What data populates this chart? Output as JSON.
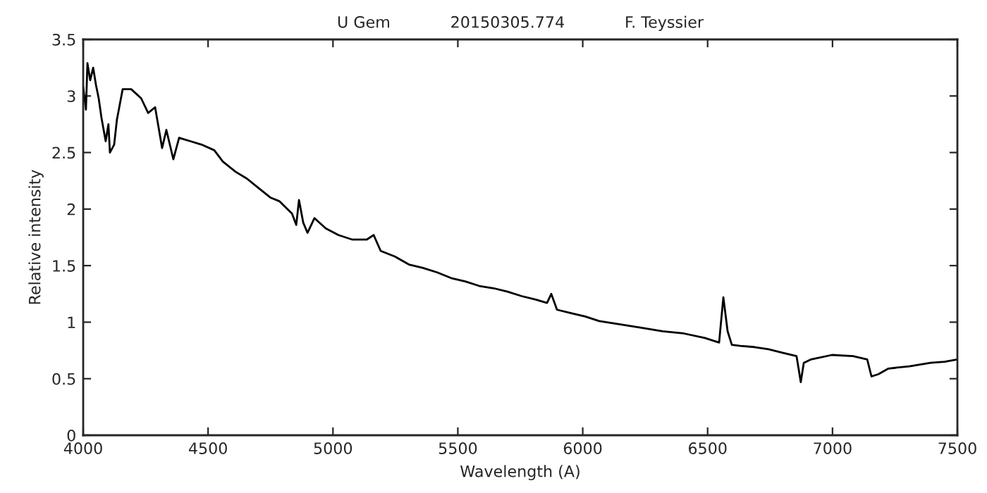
{
  "chart_data": {
    "type": "line",
    "title": "U Gem            20150305.774            F. Teyssier",
    "xlabel": "Wavelength (A)",
    "ylabel": "Relative intensity",
    "xlim": [
      4000,
      7500
    ],
    "xticks": [
      4000,
      4500,
      5000,
      5500,
      6000,
      6500,
      7000,
      7500
    ],
    "ylim": [
      0,
      3.5
    ],
    "yticks": [
      0,
      0.5,
      1,
      1.5,
      2,
      2.5,
      3,
      3.5
    ],
    "grid": false,
    "legend": false,
    "series": [
      {
        "color": "#000000",
        "x": [
          4000,
          4011,
          4017,
          4028,
          4040,
          4051,
          4062,
          4073,
          4090,
          4101,
          4107,
          4124,
          4135,
          4158,
          4192,
          4232,
          4260,
          4288,
          4316,
          4333,
          4361,
          4384,
          4429,
          4474,
          4525,
          4559,
          4610,
          4655,
          4700,
          4751,
          4785,
          4836,
          4853,
          4864,
          4881,
          4898,
          4926,
          4971,
          5022,
          5078,
          5135,
          5163,
          5191,
          5248,
          5304,
          5360,
          5417,
          5473,
          5530,
          5586,
          5643,
          5699,
          5756,
          5812,
          5857,
          5874,
          5897,
          5953,
          6010,
          6066,
          6151,
          6235,
          6320,
          6405,
          6489,
          6546,
          6563,
          6580,
          6597,
          6631,
          6687,
          6744,
          6800,
          6856,
          6873,
          6885,
          6913,
          6998,
          7082,
          7139,
          7156,
          7184,
          7224,
          7308,
          7393,
          7449,
          7500
        ],
        "values": [
          3.08,
          2.88,
          3.29,
          3.14,
          3.25,
          3.1,
          2.98,
          2.81,
          2.6,
          2.75,
          2.5,
          2.57,
          2.79,
          3.06,
          3.06,
          2.98,
          2.85,
          2.9,
          2.54,
          2.7,
          2.44,
          2.63,
          2.6,
          2.57,
          2.52,
          2.42,
          2.33,
          2.27,
          2.19,
          2.1,
          2.07,
          1.96,
          1.86,
          2.08,
          1.88,
          1.79,
          1.92,
          1.83,
          1.77,
          1.73,
          1.73,
          1.77,
          1.63,
          1.58,
          1.51,
          1.48,
          1.44,
          1.39,
          1.36,
          1.32,
          1.3,
          1.27,
          1.23,
          1.2,
          1.17,
          1.25,
          1.11,
          1.08,
          1.05,
          1.01,
          0.98,
          0.95,
          0.92,
          0.9,
          0.86,
          0.82,
          1.22,
          0.92,
          0.8,
          0.79,
          0.78,
          0.76,
          0.73,
          0.7,
          0.47,
          0.64,
          0.67,
          0.71,
          0.7,
          0.67,
          0.52,
          0.54,
          0.59,
          0.61,
          0.64,
          0.65,
          0.67
        ]
      }
    ]
  }
}
